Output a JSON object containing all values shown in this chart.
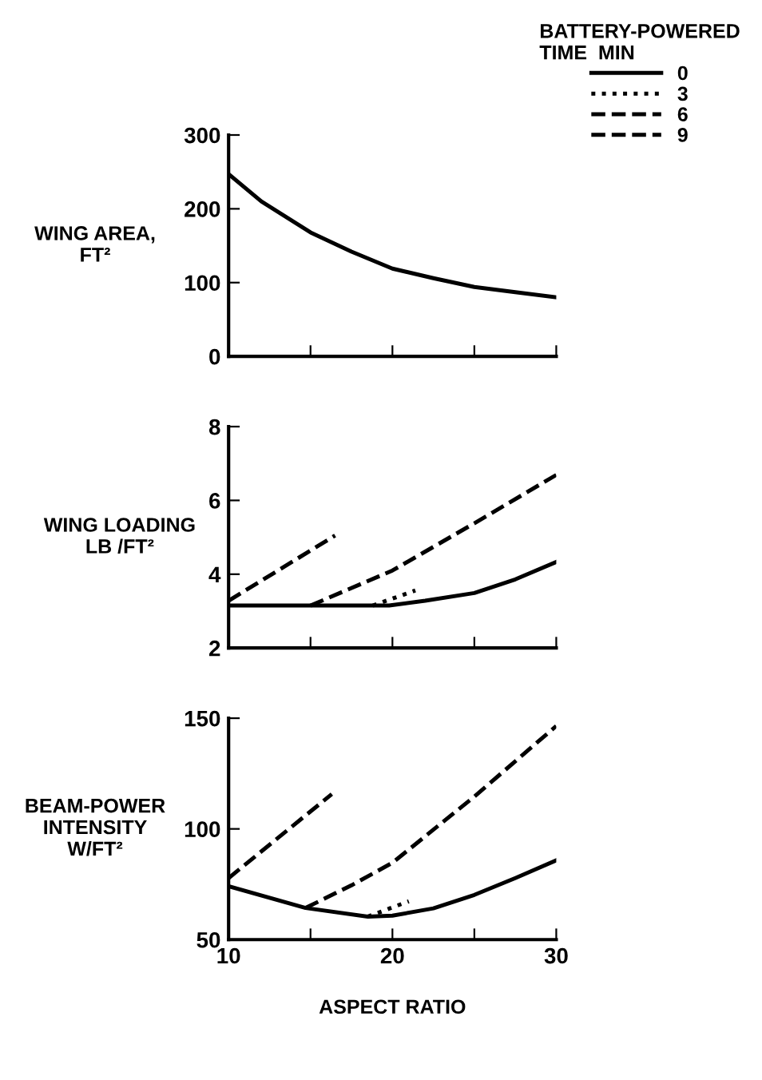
{
  "chart_data": [
    {
      "type": "line",
      "ylabel": "WING AREA,\nFT²",
      "xlim": [
        10,
        30
      ],
      "xticks": [
        {
          "value": 10,
          "label": null
        },
        {
          "value": 15,
          "label": null
        },
        {
          "value": 20,
          "label": null
        },
        {
          "value": 25,
          "label": null
        },
        {
          "value": 30,
          "label": null
        }
      ],
      "ylim": [
        0,
        300
      ],
      "yticks": [
        0,
        100,
        200,
        300
      ],
      "tick_labels": "y",
      "grid": false,
      "legend": false,
      "series": [
        {
          "color": "#000000",
          "line_style": "solid",
          "x": [
            10,
            12,
            15,
            17.5,
            20,
            22.5,
            25,
            27.5,
            30
          ],
          "values": [
            247,
            210,
            168,
            142,
            119,
            106,
            94,
            87,
            80
          ]
        }
      ]
    },
    {
      "type": "line",
      "ylabel": "WING LOADING\nLB /FT²",
      "xlim": [
        10,
        30
      ],
      "xticks": [
        {
          "value": 10,
          "label": null
        },
        {
          "value": 15,
          "label": null
        },
        {
          "value": 20,
          "label": null
        },
        {
          "value": 25,
          "label": null
        },
        {
          "value": 30,
          "label": null
        }
      ],
      "ylim": [
        2,
        8
      ],
      "yticks": [
        2,
        4,
        6,
        8
      ],
      "tick_labels": "y",
      "grid": false,
      "legend": "top right",
      "legend_title": "BATTERY-POWERED\nTIME  MIN",
      "series": [
        {
          "name": "0",
          "color": "#000000",
          "line_style": "solid",
          "x": [
            10,
            19.8,
            22,
            25,
            27.5,
            30
          ],
          "values": [
            3.15,
            3.15,
            3.28,
            3.49,
            3.86,
            4.33
          ]
        },
        {
          "name": "3",
          "color": "#000000",
          "line_style": "dotted",
          "x": [
            18.8,
            21.4
          ],
          "values": [
            3.15,
            3.56
          ]
        },
        {
          "name": "6",
          "color": "#000000",
          "line_style": "dashed",
          "x": [
            15,
            20,
            25,
            30
          ],
          "values": [
            3.15,
            4.1,
            5.38,
            6.69
          ]
        },
        {
          "name": "9",
          "color": "#000000",
          "line_style": "dashed",
          "x": [
            10,
            16.5
          ],
          "values": [
            3.28,
            5.05
          ]
        }
      ]
    },
    {
      "type": "line",
      "ylabel": "BEAM-POWER\nINTENSITY\nW/FT²",
      "xlabel": "ASPECT RATIO",
      "xlim": [
        10,
        30
      ],
      "xticks": [
        10,
        {
          "value": 15,
          "label": null
        },
        20,
        {
          "value": 25,
          "label": null
        },
        30
      ],
      "ylim": [
        50,
        150
      ],
      "yticks": [
        50,
        100,
        150
      ],
      "grid": false,
      "legend": false,
      "series": [
        {
          "color": "#000000",
          "line_style": "solid",
          "x": [
            10,
            14.7,
            18.5,
            20,
            22.5,
            25,
            27.5,
            30
          ],
          "values": [
            74.1,
            64.3,
            60.4,
            60.8,
            64.1,
            70.2,
            77.8,
            85.8
          ]
        },
        {
          "color": "#000000",
          "line_style": "dotted",
          "x": [
            18.5,
            21
          ],
          "values": [
            60.4,
            67.3
          ]
        },
        {
          "color": "#000000",
          "line_style": "dashed",
          "x": [
            14.7,
            17.5,
            20,
            25,
            30
          ],
          "values": [
            64.3,
            74.5,
            84.7,
            114.6,
            146.5
          ]
        },
        {
          "color": "#000000",
          "line_style": "dashed",
          "x": [
            10,
            16.3
          ],
          "values": [
            77.8,
            115.7
          ]
        }
      ]
    }
  ]
}
